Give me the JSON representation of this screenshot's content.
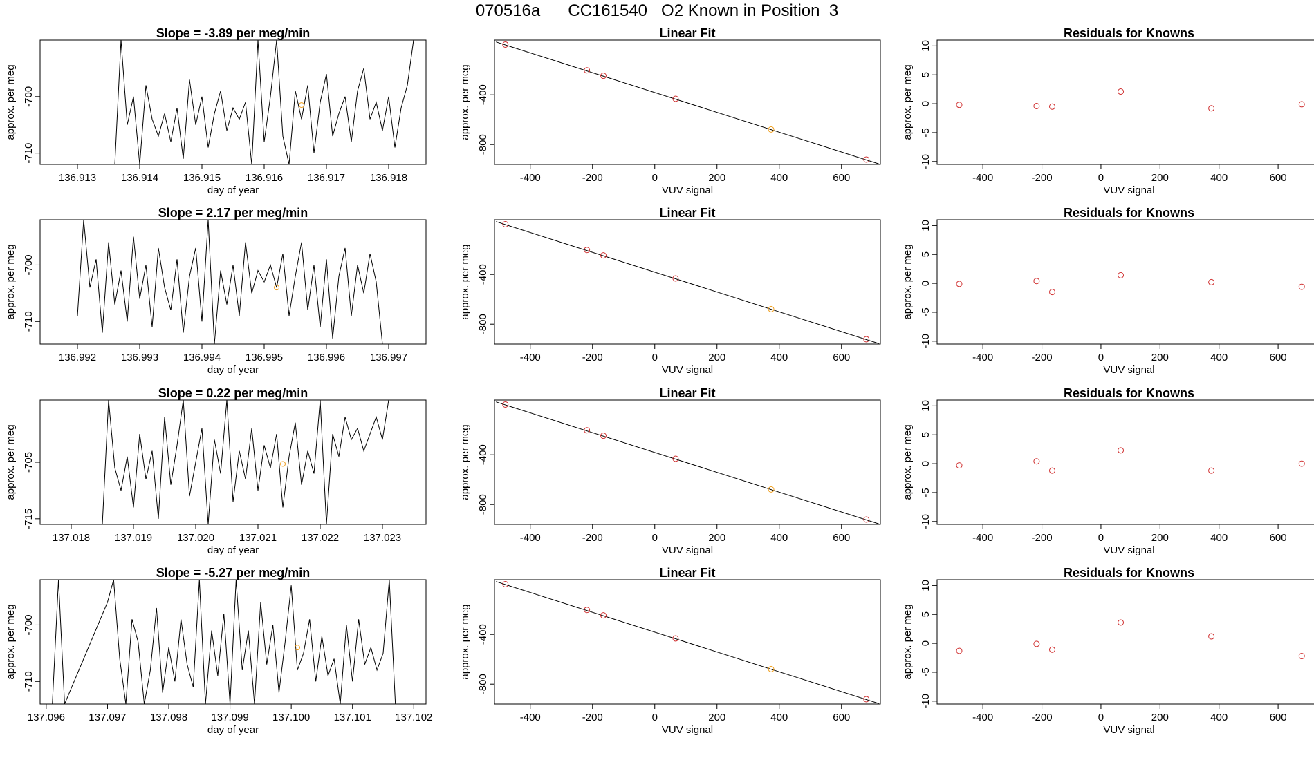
{
  "title": {
    "run": "070516a",
    "tank": "CC161540",
    "label": "O2 Known in Position  3"
  },
  "colors": {
    "trace": "#000000",
    "marker_orange": "#f0a020",
    "marker_red": "#d03030",
    "frame": "#000000"
  },
  "common": {
    "ts_xlabel": "day of year",
    "ts_ylabel": "approx. per meg",
    "fit_title": "Linear Fit",
    "fit_xlabel": "VUV signal",
    "fit_ylabel": "approx. per meg",
    "res_title": "Residuals for Knowns",
    "res_xlabel": "VUV signal",
    "res_ylabel": "approx. per meg",
    "slope_prefix": "Slope = ",
    "slope_suffix": " per meg/min"
  },
  "chart_data": [
    {
      "type": "line",
      "panel": "timeseries",
      "row": 1,
      "slope": "-3.89",
      "xlim": [
        136.9124,
        136.9186
      ],
      "ylim": [
        -712,
        -690
      ],
      "xticks": [
        "136.913",
        "136.914",
        "136.915",
        "136.916",
        "136.917",
        "136.918"
      ],
      "yticks": [
        -700,
        -710
      ],
      "x": [
        136.9136,
        136.9137,
        136.9138,
        136.9139,
        136.914,
        136.9141,
        136.9142,
        136.9143,
        136.9144,
        136.9145,
        136.9146,
        136.9147,
        136.9148,
        136.9149,
        136.915,
        136.9151,
        136.9152,
        136.9153,
        136.9154,
        136.9155,
        136.9156,
        136.9157,
        136.9158,
        136.9159,
        136.916,
        136.9161,
        136.9162,
        136.9163,
        136.9164,
        136.9165,
        136.9166,
        136.9167,
        136.9168,
        136.9169,
        136.917,
        136.9171,
        136.9172,
        136.9173,
        136.9174,
        136.9175,
        136.9176,
        136.9177,
        136.9178,
        136.9179,
        136.918,
        136.9181,
        136.9182,
        136.9183,
        136.9184
      ],
      "y": [
        -712,
        -690,
        -705,
        -700,
        -712,
        -698,
        -704,
        -707,
        -703,
        -708,
        -702,
        -711,
        -697,
        -705,
        -700,
        -709,
        -703,
        -699,
        -706,
        -702,
        -704,
        -701,
        -712,
        -690,
        -708,
        -700,
        -690,
        -707,
        -712,
        -699,
        -704,
        -698,
        -710,
        -701,
        -696,
        -707,
        -703,
        -700,
        -708,
        -699,
        -695,
        -704,
        -701,
        -706,
        -700,
        -709,
        -702,
        -698,
        -690
      ],
      "highlight": {
        "x": 136.9166,
        "y": -701.5
      }
    },
    {
      "type": "scatter",
      "panel": "fit",
      "row": 1,
      "xlim": [
        -515,
        725
      ],
      "ylim": [
        -960,
        40
      ],
      "xticks": [
        -400,
        -200,
        0,
        200,
        400,
        600
      ],
      "yticks": [
        -400,
        -800
      ],
      "line": {
        "x": [
          -510,
          720
        ],
        "y": [
          25,
          -956
        ]
      },
      "points": [
        {
          "x": -480,
          "y": 4,
          "color": "red"
        },
        {
          "x": -218,
          "y": -203,
          "color": "red"
        },
        {
          "x": -165,
          "y": -247,
          "color": "red"
        },
        {
          "x": 67,
          "y": -432,
          "color": "red"
        },
        {
          "x": 374,
          "y": -679,
          "color": "orange"
        },
        {
          "x": 680,
          "y": -921,
          "color": "red"
        }
      ]
    },
    {
      "type": "scatter",
      "panel": "residuals",
      "row": 1,
      "xlim": [
        -555,
        745
      ],
      "ylim": [
        -10.5,
        11
      ],
      "xticks": [
        -400,
        -200,
        0,
        200,
        400,
        600
      ],
      "yticks": [
        10,
        5,
        0,
        -5,
        -10
      ],
      "points": [
        {
          "x": -480,
          "y": -0.2
        },
        {
          "x": -218,
          "y": -0.4
        },
        {
          "x": -165,
          "y": -0.5
        },
        {
          "x": 67,
          "y": 2.1
        },
        {
          "x": 374,
          "y": -0.8
        },
        {
          "x": 680,
          "y": -0.1
        }
      ]
    },
    {
      "type": "line",
      "panel": "timeseries",
      "row": 2,
      "slope": "2.17",
      "xlim": [
        136.9914,
        136.9976
      ],
      "ylim": [
        -714,
        -692
      ],
      "xticks": [
        "136.992",
        "136.993",
        "136.994",
        "136.995",
        "136.996",
        "136.997"
      ],
      "yticks": [
        -700,
        -710
      ],
      "x": [
        136.992,
        136.9921,
        136.9922,
        136.9923,
        136.9924,
        136.9925,
        136.9926,
        136.9927,
        136.9928,
        136.9929,
        136.993,
        136.9931,
        136.9932,
        136.9933,
        136.9934,
        136.9935,
        136.9936,
        136.9937,
        136.9938,
        136.9939,
        136.994,
        136.9941,
        136.9942,
        136.9943,
        136.9944,
        136.9945,
        136.9946,
        136.9947,
        136.9948,
        136.9949,
        136.995,
        136.9951,
        136.9952,
        136.9953,
        136.9954,
        136.9955,
        136.9956,
        136.9957,
        136.9958,
        136.9959,
        136.996,
        136.9961,
        136.9962,
        136.9963,
        136.9964,
        136.9965,
        136.9966,
        136.9967,
        136.9968,
        136.9969
      ],
      "y": [
        -709,
        -692,
        -704,
        -699,
        -712,
        -696,
        -707,
        -701,
        -710,
        -695,
        -706,
        -700,
        -711,
        -697,
        -704,
        -708,
        -699,
        -712,
        -702,
        -697,
        -710,
        -692,
        -714,
        -701,
        -707,
        -700,
        -709,
        -696,
        -705,
        -701,
        -703,
        -700,
        -704,
        -698,
        -709,
        -702,
        -696,
        -708,
        -700,
        -711,
        -699,
        -713,
        -702,
        -697,
        -709,
        -700,
        -705,
        -698,
        -703,
        -714
      ],
      "highlight": {
        "x": 136.9952,
        "y": -704
      }
    },
    {
      "type": "scatter",
      "panel": "fit",
      "row": 2,
      "xlim": [
        -515,
        725
      ],
      "ylim": [
        -960,
        40
      ],
      "xticks": [
        -400,
        -200,
        0,
        200,
        400,
        600
      ],
      "yticks": [
        -400,
        -800
      ],
      "line": {
        "x": [
          -510,
          720
        ],
        "y": [
          25,
          -956
        ]
      },
      "points": [
        {
          "x": -480,
          "y": 4,
          "color": "red"
        },
        {
          "x": -218,
          "y": -203,
          "color": "red"
        },
        {
          "x": -165,
          "y": -247,
          "color": "red"
        },
        {
          "x": 67,
          "y": -432,
          "color": "red"
        },
        {
          "x": 374,
          "y": -679,
          "color": "orange"
        },
        {
          "x": 680,
          "y": -921,
          "color": "red"
        }
      ]
    },
    {
      "type": "scatter",
      "panel": "residuals",
      "row": 2,
      "xlim": [
        -555,
        745
      ],
      "ylim": [
        -10.5,
        11
      ],
      "xticks": [
        -400,
        -200,
        0,
        200,
        400,
        600
      ],
      "yticks": [
        10,
        5,
        0,
        -5,
        -10
      ],
      "points": [
        {
          "x": -480,
          "y": -0.1
        },
        {
          "x": -218,
          "y": 0.4
        },
        {
          "x": -165,
          "y": -1.5
        },
        {
          "x": 67,
          "y": 1.4
        },
        {
          "x": 374,
          "y": 0.2
        },
        {
          "x": 680,
          "y": -0.6
        }
      ]
    },
    {
      "type": "line",
      "panel": "timeseries",
      "row": 3,
      "slope": "0.22",
      "xlim": [
        137.0175,
        137.0237
      ],
      "ylim": [
        -716,
        -694
      ],
      "xticks": [
        "137.018",
        "137.019",
        "137.020",
        "137.021",
        "137.022",
        "137.023"
      ],
      "yticks": [
        -705,
        -715
      ],
      "x": [
        137.0185,
        137.0186,
        137.0187,
        137.0188,
        137.0189,
        137.019,
        137.0191,
        137.0192,
        137.0193,
        137.0194,
        137.0195,
        137.0196,
        137.0197,
        137.0198,
        137.0199,
        137.02,
        137.0201,
        137.0202,
        137.0203,
        137.0204,
        137.0205,
        137.0206,
        137.0207,
        137.0208,
        137.0209,
        137.021,
        137.0211,
        137.0212,
        137.0213,
        137.0214,
        137.0215,
        137.0216,
        137.0217,
        137.0218,
        137.0219,
        137.022,
        137.0221,
        137.0222,
        137.0223,
        137.0224,
        137.0225,
        137.0226,
        137.0227,
        137.0228,
        137.0229,
        137.023,
        137.0231
      ],
      "y": [
        -716,
        -694,
        -706,
        -710,
        -704,
        -713,
        -700,
        -708,
        -703,
        -715,
        -697,
        -709,
        -702,
        -694,
        -711,
        -705,
        -699,
        -716,
        -701,
        -707,
        -694,
        -712,
        -703,
        -708,
        -699,
        -710,
        -702,
        -706,
        -700,
        -713,
        -704,
        -698,
        -709,
        -703,
        -707,
        -694,
        -716,
        -700,
        -704,
        -697,
        -701,
        -699,
        -703,
        -700,
        -697,
        -701,
        -694
      ],
      "highlight": {
        "x": 137.0214,
        "y": -705.3
      }
    },
    {
      "type": "scatter",
      "panel": "fit",
      "row": 3,
      "xlim": [
        -515,
        725
      ],
      "ylim": [
        -960,
        40
      ],
      "xticks": [
        -400,
        -200,
        0,
        200,
        400,
        600
      ],
      "yticks": [
        -400,
        -800
      ],
      "line": {
        "x": [
          -510,
          720
        ],
        "y": [
          25,
          -956
        ]
      },
      "points": [
        {
          "x": -480,
          "y": 4,
          "color": "red"
        },
        {
          "x": -218,
          "y": -203,
          "color": "red"
        },
        {
          "x": -165,
          "y": -247,
          "color": "red"
        },
        {
          "x": 67,
          "y": -432,
          "color": "red"
        },
        {
          "x": 374,
          "y": -679,
          "color": "orange"
        },
        {
          "x": 680,
          "y": -921,
          "color": "red"
        }
      ]
    },
    {
      "type": "scatter",
      "panel": "residuals",
      "row": 3,
      "xlim": [
        -555,
        745
      ],
      "ylim": [
        -10.5,
        11
      ],
      "xticks": [
        -400,
        -200,
        0,
        200,
        400,
        600
      ],
      "yticks": [
        10,
        5,
        0,
        -5,
        -10
      ],
      "points": [
        {
          "x": -480,
          "y": -0.3
        },
        {
          "x": -218,
          "y": 0.4
        },
        {
          "x": -165,
          "y": -1.2
        },
        {
          "x": 67,
          "y": 2.3
        },
        {
          "x": 374,
          "y": -1.2
        },
        {
          "x": 680,
          "y": 0.0
        }
      ]
    },
    {
      "type": "line",
      "panel": "timeseries",
      "row": 4,
      "slope": "-5.27",
      "xlim": [
        137.0959,
        137.1022
      ],
      "ylim": [
        -714,
        -692
      ],
      "xticks": [
        "137.096",
        "137.097",
        "137.098",
        "137.099",
        "137.100",
        "137.101",
        "137.102"
      ],
      "yticks": [
        -700,
        -710
      ],
      "x": [
        137.0961,
        137.0962,
        137.0963,
        137.097,
        137.0971,
        137.0972,
        137.0973,
        137.0974,
        137.0975,
        137.0976,
        137.0977,
        137.0978,
        137.0979,
        137.098,
        137.0981,
        137.0982,
        137.0983,
        137.0984,
        137.0985,
        137.0986,
        137.0987,
        137.0988,
        137.0989,
        137.099,
        137.0991,
        137.0992,
        137.0993,
        137.0994,
        137.0995,
        137.0996,
        137.0997,
        137.0998,
        137.0999,
        137.1,
        137.1001,
        137.1002,
        137.1003,
        137.1004,
        137.1005,
        137.1006,
        137.1007,
        137.1008,
        137.1009,
        137.101,
        137.1011,
        137.1012,
        137.1013,
        137.1014,
        137.1015,
        137.1016,
        137.1017
      ],
      "y": [
        -714,
        -692,
        -714,
        -696,
        -692,
        -706,
        -714,
        -699,
        -703,
        -714,
        -708,
        -697,
        -712,
        -704,
        -710,
        -699,
        -707,
        -711,
        -692,
        -714,
        -701,
        -709,
        -698,
        -714,
        -692,
        -708,
        -701,
        -714,
        -696,
        -707,
        -700,
        -712,
        -703,
        -693,
        -708,
        -705,
        -699,
        -710,
        -702,
        -709,
        -706,
        -714,
        -700,
        -710,
        -699,
        -707,
        -704,
        -708,
        -705,
        -692,
        -714
      ],
      "highlight": {
        "x": 137.1001,
        "y": -704
      }
    },
    {
      "type": "scatter",
      "panel": "fit",
      "row": 4,
      "xlim": [
        -515,
        725
      ],
      "ylim": [
        -960,
        40
      ],
      "xticks": [
        -400,
        -200,
        0,
        200,
        400,
        600
      ],
      "yticks": [
        -400,
        -800
      ],
      "line": {
        "x": [
          -510,
          720
        ],
        "y": [
          25,
          -956
        ]
      },
      "points": [
        {
          "x": -480,
          "y": 4,
          "color": "red"
        },
        {
          "x": -218,
          "y": -203,
          "color": "red"
        },
        {
          "x": -165,
          "y": -247,
          "color": "red"
        },
        {
          "x": 67,
          "y": -432,
          "color": "red"
        },
        {
          "x": 374,
          "y": -679,
          "color": "orange"
        },
        {
          "x": 680,
          "y": -921,
          "color": "red"
        }
      ]
    },
    {
      "type": "scatter",
      "panel": "residuals",
      "row": 4,
      "xlim": [
        -555,
        745
      ],
      "ylim": [
        -10.5,
        11
      ],
      "xticks": [
        -400,
        -200,
        0,
        200,
        400,
        600
      ],
      "yticks": [
        10,
        5,
        0,
        -5,
        -10
      ],
      "points": [
        {
          "x": -480,
          "y": -1.3
        },
        {
          "x": -218,
          "y": -0.1
        },
        {
          "x": -165,
          "y": -1.1
        },
        {
          "x": 67,
          "y": 3.6
        },
        {
          "x": 374,
          "y": 1.2
        },
        {
          "x": 680,
          "y": -2.2
        }
      ]
    }
  ]
}
